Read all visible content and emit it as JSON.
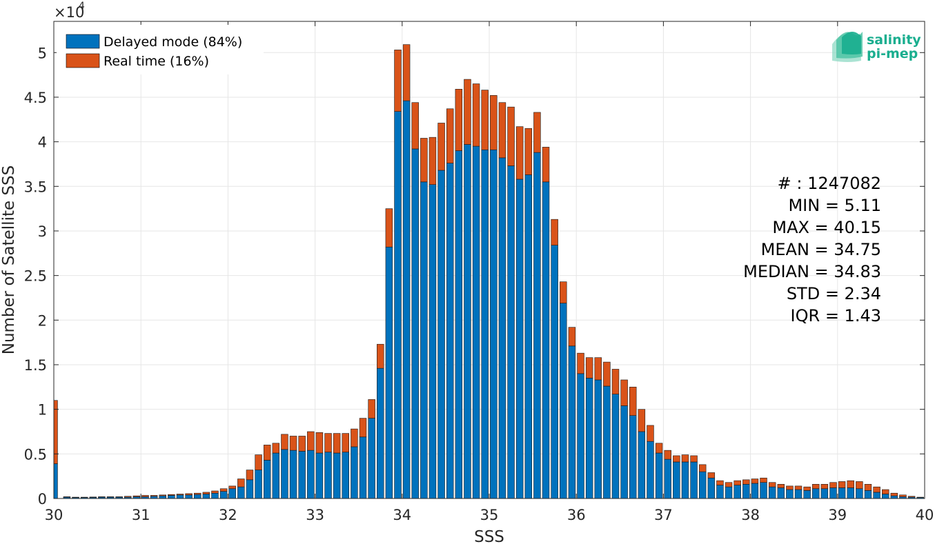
{
  "chart_data": {
    "type": "bar",
    "stacked": true,
    "xlabel": "SSS",
    "ylabel": "Number of Satellite SSS",
    "xlim": [
      30,
      40
    ],
    "ylim": [
      0,
      53500
    ],
    "y_exponent_label": "×10",
    "y_exponent_power": "4",
    "xticks": [
      "30",
      "31",
      "32",
      "33",
      "34",
      "35",
      "36",
      "37",
      "38",
      "39",
      "40"
    ],
    "yticks": [
      "0",
      "0.5",
      "1",
      "1.5",
      "2",
      "2.5",
      "3",
      "3.5",
      "4",
      "4.5",
      "5"
    ],
    "bin_start": 30,
    "bin_width": 0.1,
    "grid": true,
    "legend_position": "top-left",
    "series": [
      {
        "name": "Delayed mode (84%)",
        "color": "#0072BD",
        "values": [
          3900,
          150,
          100,
          100,
          120,
          150,
          150,
          150,
          150,
          200,
          200,
          250,
          300,
          350,
          400,
          400,
          450,
          500,
          600,
          800,
          1100,
          1300,
          2100,
          3200,
          4300,
          5100,
          5500,
          5400,
          5300,
          5400,
          5100,
          5200,
          5100,
          5200,
          5800,
          6900,
          9000,
          14600,
          28200,
          43400,
          44600,
          39200,
          35500,
          35200,
          36800,
          37600,
          39000,
          39700,
          39500,
          39100,
          39100,
          38200,
          37300,
          35800,
          36300,
          38800,
          35500,
          28400,
          21900,
          17100,
          14000,
          13500,
          13300,
          12600,
          11700,
          10400,
          9300,
          7500,
          6400,
          5100,
          4400,
          4100,
          4100,
          4100,
          3000,
          2300,
          1500,
          1300,
          1500,
          1600,
          1700,
          1800,
          1300,
          1200,
          1000,
          1000,
          900,
          1100,
          1100,
          1200,
          1200,
          1200,
          1100,
          900,
          700,
          500,
          300,
          200,
          150,
          100
        ],
        "labels_visible": false
      },
      {
        "name": "Real time (16%)",
        "color": "#D95319",
        "values": [
          7100,
          50,
          50,
          50,
          50,
          50,
          50,
          50,
          100,
          100,
          150,
          100,
          100,
          100,
          100,
          150,
          150,
          200,
          250,
          300,
          300,
          900,
          1100,
          1700,
          1700,
          1100,
          1700,
          1600,
          1700,
          2100,
          2300,
          2100,
          2200,
          2100,
          2000,
          2100,
          2100,
          2700,
          4300,
          6900,
          6300,
          5200,
          4900,
          5300,
          5300,
          6100,
          6900,
          7300,
          7000,
          6700,
          6100,
          6200,
          6600,
          5900,
          5200,
          4500,
          3900,
          2900,
          2400,
          2100,
          2300,
          2300,
          2500,
          2700,
          2800,
          2900,
          3200,
          2500,
          1800,
          1100,
          1000,
          700,
          800,
          700,
          800,
          600,
          500,
          500,
          500,
          500,
          500,
          500,
          500,
          400,
          400,
          400,
          400,
          500,
          500,
          600,
          700,
          800,
          800,
          700,
          600,
          500,
          300,
          200,
          100,
          50
        ]
      }
    ],
    "stats": [
      "# : 1247082",
      "MIN = 5.11",
      "MAX =  40.15",
      "MEAN = 34.75",
      "MEDIAN = 34.83",
      "STD = 2.34",
      "IQR = 1.43"
    ]
  },
  "logo": {
    "line1": "salinity",
    "line2": "pi-mep",
    "color": "#1AAE8F"
  }
}
